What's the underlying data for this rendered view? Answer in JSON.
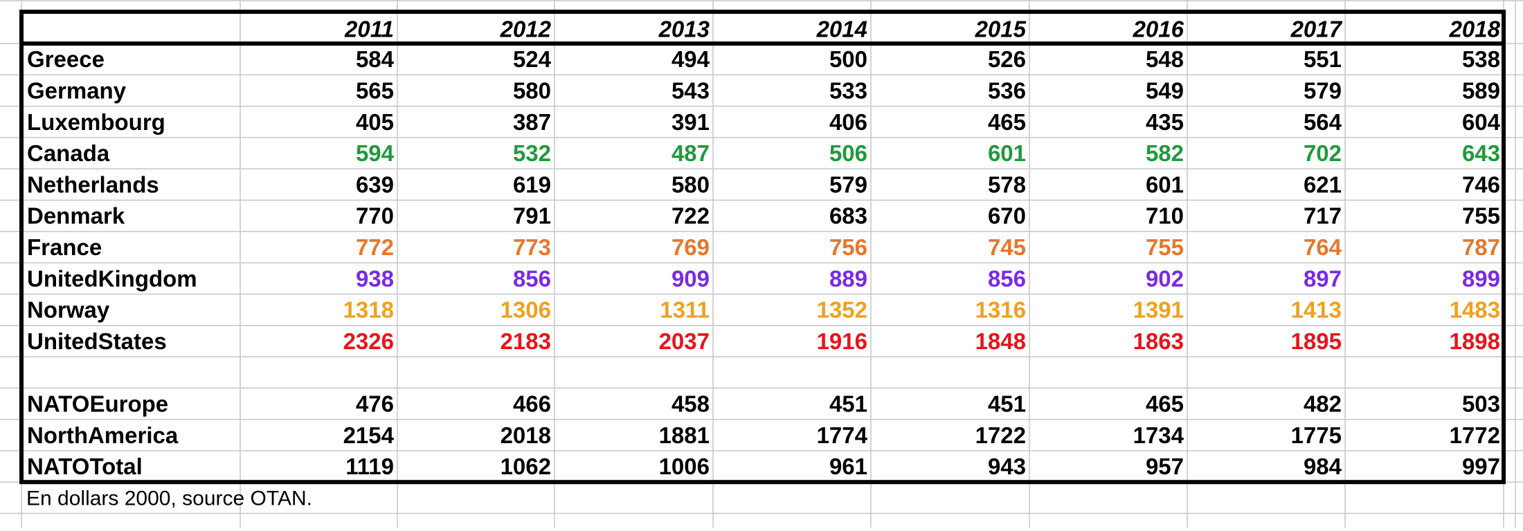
{
  "table": {
    "header": [
      "2011",
      "2012",
      "2013",
      "2014",
      "2015",
      "2016",
      "2017",
      "2018"
    ],
    "rows": [
      {
        "label": "Greece",
        "color": "#000000",
        "values": [
          584,
          524,
          494,
          500,
          526,
          548,
          551,
          538
        ]
      },
      {
        "label": "Germany",
        "color": "#000000",
        "values": [
          565,
          580,
          543,
          533,
          536,
          549,
          579,
          589
        ]
      },
      {
        "label": "Luxembourg",
        "color": "#000000",
        "values": [
          405,
          387,
          391,
          406,
          465,
          435,
          564,
          604
        ]
      },
      {
        "label": "Canada",
        "color": "#1f9a3c",
        "values": [
          594,
          532,
          487,
          506,
          601,
          582,
          702,
          643
        ]
      },
      {
        "label": "Netherlands",
        "color": "#000000",
        "values": [
          639,
          619,
          580,
          579,
          578,
          601,
          621,
          746
        ]
      },
      {
        "label": "Denmark",
        "color": "#000000",
        "values": [
          770,
          791,
          722,
          683,
          670,
          710,
          717,
          755
        ]
      },
      {
        "label": "France",
        "color": "#e8762c",
        "values": [
          772,
          773,
          769,
          756,
          745,
          755,
          764,
          787
        ]
      },
      {
        "label": "UnitedKingdom",
        "color": "#7a2ae6",
        "values": [
          938,
          856,
          909,
          889,
          856,
          902,
          897,
          899
        ]
      },
      {
        "label": "Norway",
        "color": "#f0a020",
        "values": [
          1318,
          1306,
          1311,
          1352,
          1316,
          1391,
          1413,
          1483
        ]
      },
      {
        "label": "UnitedStates",
        "color": "#e8141b",
        "values": [
          2326,
          2183,
          2037,
          1916,
          1848,
          1863,
          1895,
          1898
        ]
      }
    ],
    "aggregates": [
      {
        "label": "NATOEurope",
        "color": "#000000",
        "values": [
          476,
          466,
          458,
          451,
          451,
          465,
          482,
          503
        ]
      },
      {
        "label": "NorthAmerica",
        "color": "#000000",
        "values": [
          2154,
          2018,
          1881,
          1774,
          1722,
          1734,
          1775,
          1772
        ]
      },
      {
        "label": "NATOTotal",
        "color": "#000000",
        "values": [
          1119,
          1062,
          1006,
          961,
          943,
          957,
          984,
          997
        ]
      }
    ]
  },
  "note": "En dollars 2000, source OTAN."
}
